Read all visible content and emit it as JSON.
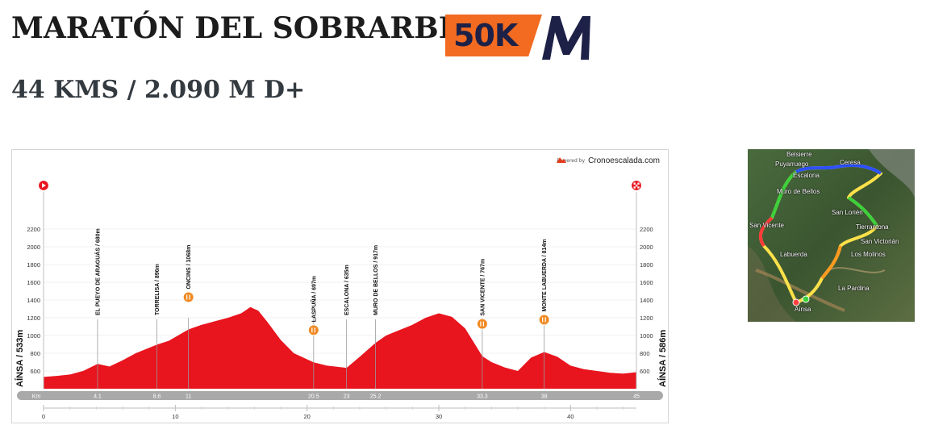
{
  "header": {
    "title": "MARATÓN DEL SOBRARBE",
    "subtitle": "44 KMS / 2.090 M D+",
    "logo_text": "50K"
  },
  "chart_data": {
    "type": "area",
    "title": "",
    "xlabel": "",
    "ylabel": "",
    "powered_by": "Powered by",
    "brand": "Cronoescalada.com",
    "ylim": [
      400,
      2400
    ],
    "xlim": [
      0,
      45
    ],
    "y_ticks": [
      600,
      800,
      1000,
      1200,
      1400,
      1600,
      1800,
      2000,
      2200
    ],
    "x_ticks": [
      0,
      10,
      20,
      30,
      40
    ],
    "km_label": "Km",
    "km_marks": [
      "4.1",
      "8.6",
      "11",
      "20.5",
      "23",
      "25.2",
      "33.3",
      "38",
      "45"
    ],
    "start_label": "AÍNSA / 533m",
    "end_label": "AÍNSA / 586m",
    "profile": [
      [
        0,
        533
      ],
      [
        1,
        545
      ],
      [
        2,
        560
      ],
      [
        3,
        600
      ],
      [
        4.1,
        680
      ],
      [
        5,
        650
      ],
      [
        6,
        720
      ],
      [
        7,
        800
      ],
      [
        8.6,
        896
      ],
      [
        9.5,
        940
      ],
      [
        11,
        1068
      ],
      [
        12,
        1120
      ],
      [
        13,
        1160
      ],
      [
        14,
        1200
      ],
      [
        15,
        1250
      ],
      [
        15.7,
        1320
      ],
      [
        16.3,
        1280
      ],
      [
        17,
        1150
      ],
      [
        18,
        950
      ],
      [
        19,
        800
      ],
      [
        20.5,
        697
      ],
      [
        21.5,
        660
      ],
      [
        23,
        635
      ],
      [
        24,
        760
      ],
      [
        25.2,
        917
      ],
      [
        26,
        1000
      ],
      [
        27,
        1060
      ],
      [
        28,
        1120
      ],
      [
        29,
        1200
      ],
      [
        30,
        1250
      ],
      [
        31,
        1210
      ],
      [
        32,
        1080
      ],
      [
        33.3,
        767
      ],
      [
        34,
        700
      ],
      [
        35,
        640
      ],
      [
        36,
        600
      ],
      [
        37,
        750
      ],
      [
        38,
        814
      ],
      [
        39,
        760
      ],
      [
        40,
        660
      ],
      [
        41,
        620
      ],
      [
        42,
        600
      ],
      [
        43,
        580
      ],
      [
        44,
        570
      ],
      [
        45,
        586
      ]
    ],
    "waypoints": [
      {
        "km": 4.1,
        "label": "EL PUEYO DE ARAGUÁS / 680m",
        "elev": 680,
        "aid": false
      },
      {
        "km": 8.6,
        "label": "TORRELISA / 896m",
        "elev": 896,
        "aid": false
      },
      {
        "km": 11,
        "label": "ONCINS / 1068m",
        "elev": 1068,
        "aid": true
      },
      {
        "km": 20.5,
        "label": "LASPUÑA / 697m",
        "elev": 697,
        "aid": true
      },
      {
        "km": 23,
        "label": "ESCALONA / 635m",
        "elev": 635,
        "aid": false
      },
      {
        "km": 25.2,
        "label": "MURO DE BELLOS / 917m",
        "elev": 917,
        "aid": false
      },
      {
        "km": 33.3,
        "label": "SAN VICENTE / 767m",
        "elev": 767,
        "aid": true
      },
      {
        "km": 38,
        "label": "MONTE LABUERDA / 814m",
        "elev": 814,
        "aid": true
      }
    ]
  },
  "map": {
    "labels": [
      "Belsierre",
      "Puyarruego",
      "Escalona",
      "Ceresa",
      "Muro de Bellos",
      "San Lorién",
      "San Vicente",
      "Labuerda",
      "San Victorián",
      "Los Molinos",
      "La Pardina",
      "Aínsa",
      "Tierrantona"
    ]
  },
  "colors": {
    "profile_fill": "#e8141e",
    "aid_icon": "#f08a24",
    "logo_orange": "#f26b21",
    "logo_navy": "#1d2147"
  }
}
